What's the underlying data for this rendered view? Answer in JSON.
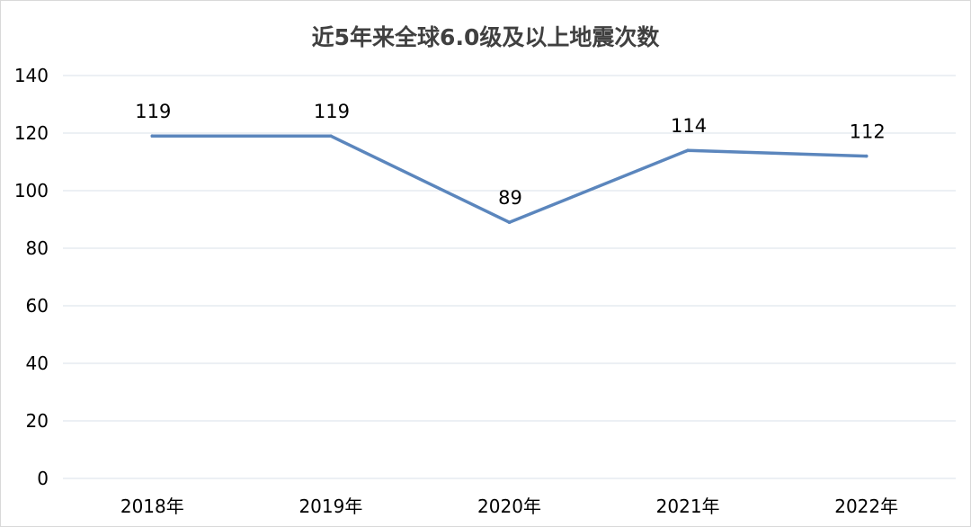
{
  "chart_data": {
    "type": "line",
    "title": "近5年来全球6.0级及以上地震次数",
    "categories": [
      "2018年",
      "2019年",
      "2020年",
      "2021年",
      "2022年"
    ],
    "series": [
      {
        "values": [
          119,
          119,
          89,
          114,
          112
        ],
        "color": "#5b86bd"
      }
    ],
    "data_labels": [
      "119",
      "119",
      "89",
      "114",
      "112"
    ],
    "ylim": [
      0,
      140
    ],
    "yticks": [
      0,
      20,
      40,
      60,
      80,
      100,
      120,
      140
    ],
    "grid": true,
    "legend": "none",
    "gridline_color": "#d9e2ea"
  }
}
